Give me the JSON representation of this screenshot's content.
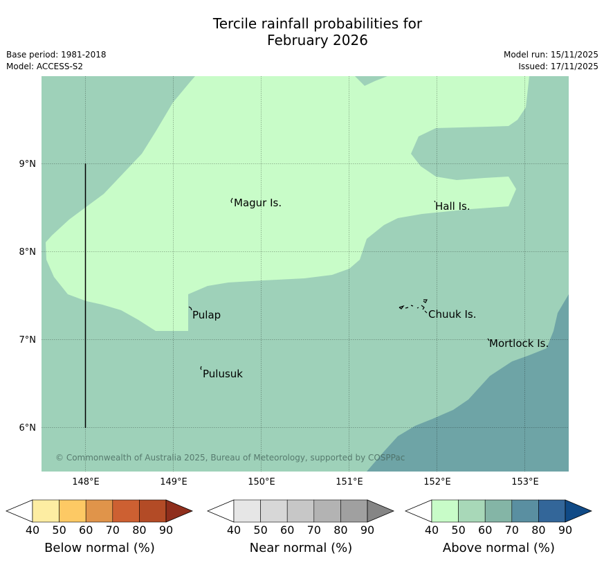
{
  "header": {
    "title_line1": "Tercile rainfall probabilities for",
    "title_line2": "February 2026",
    "base_period": "Base period: 1981-2018",
    "model": "Model: ACCESS-S2",
    "model_run": "Model run: 15/11/2025",
    "issued": "Issued: 17/11/2025"
  },
  "map": {
    "lon_ticks": [
      "148°E",
      "149°E",
      "150°E",
      "151°E",
      "152°E",
      "153°E"
    ],
    "lat_ticks": [
      "9°N",
      "8°N",
      "7°N",
      "6°N"
    ],
    "places": {
      "magur": "Magur Is.",
      "hall": "Hall Is.",
      "pulap": "Pulap",
      "chuuk": "Chuuk Is.",
      "mortlock": "Mortlock Is.",
      "pulusuk": "Pulusuk"
    },
    "copyright": "© Commonwealth of Australia 2025, Bureau of Meteorology, supported by COSPPac",
    "colors": {
      "above_40_50": "#c8fcc8",
      "above_50_60": "#9ed1b9",
      "above_60_70": "#6ea4a6",
      "ocean_frame": "#ffffff"
    }
  },
  "colorbars": {
    "ticks": [
      "40",
      "50",
      "60",
      "70",
      "80",
      "90"
    ],
    "below": {
      "label": "Below normal (%)",
      "colors": [
        "#ffffff",
        "#fdeda2",
        "#fdc964",
        "#e0944a",
        "#cd6032",
        "#b34b26",
        "#8f2e1c"
      ]
    },
    "near": {
      "label": "Near normal (%)",
      "colors": [
        "#ffffff",
        "#e6e6e6",
        "#d7d7d7",
        "#c7c7c7",
        "#b3b3b3",
        "#a0a0a0",
        "#858585"
      ]
    },
    "above": {
      "label": "Above normal (%)",
      "colors": [
        "#ffffff",
        "#c8fcc8",
        "#a8d8b8",
        "#84b5a6",
        "#5a8fa1",
        "#336699",
        "#104a86"
      ]
    }
  }
}
